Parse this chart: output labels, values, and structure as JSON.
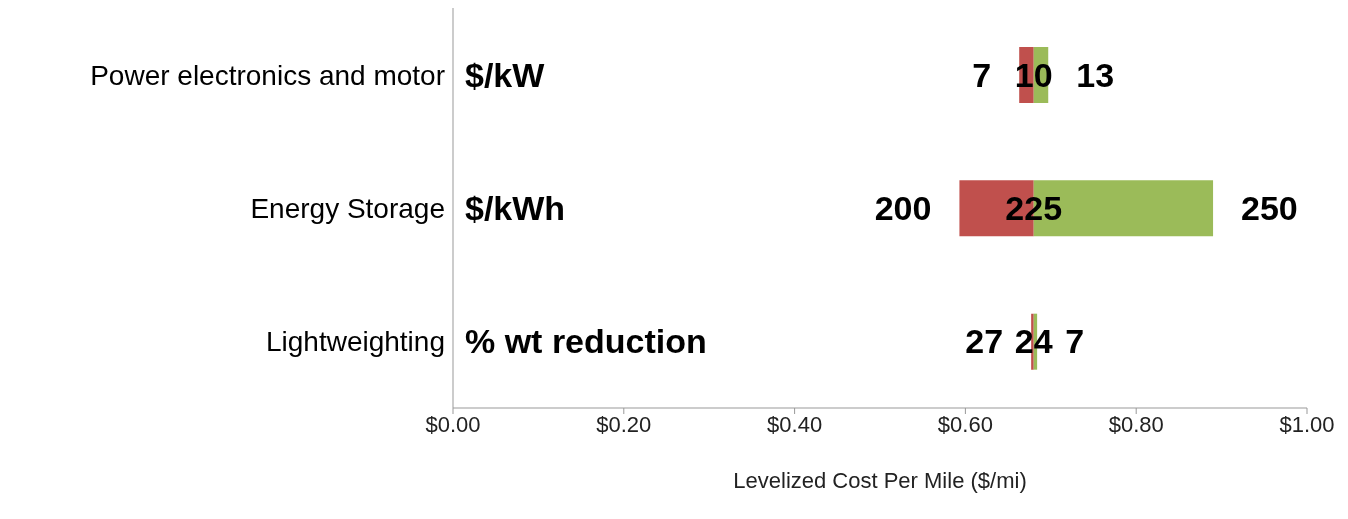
{
  "chart_data": {
    "type": "bar",
    "orientation": "horizontal",
    "xlabel": "Levelized Cost Per Mile ($/mi)",
    "categories": [
      "Power electronics and motor",
      "Energy Storage",
      "Lightweighting"
    ],
    "series": [
      {
        "color": "#c0504d",
        "base": [
          0.663,
          0.593,
          0.677
        ],
        "values": [
          0.017,
          0.087,
          0.003
        ]
      },
      {
        "color": "#9bbb59",
        "base": [
          0.68,
          0.68,
          0.68
        ],
        "values": [
          0.017,
          0.21,
          0.004
        ]
      }
    ],
    "xlim": [
      0,
      1
    ],
    "xticks": [
      {
        "value": 0,
        "label": "$0.00"
      },
      {
        "value": 0.2,
        "label": "$0.20"
      },
      {
        "value": 0.4,
        "label": "$0.40"
      },
      {
        "value": 0.6,
        "label": "$0.60"
      },
      {
        "value": 0.8,
        "label": "$0.80"
      },
      {
        "value": 1,
        "label": "$1.00"
      }
    ],
    "annotations": [
      "$/kW",
      "$/kWh",
      "% wt reduction",
      "7",
      "200",
      "27",
      "10",
      "225",
      "24",
      "13",
      "250",
      "7"
    ]
  }
}
